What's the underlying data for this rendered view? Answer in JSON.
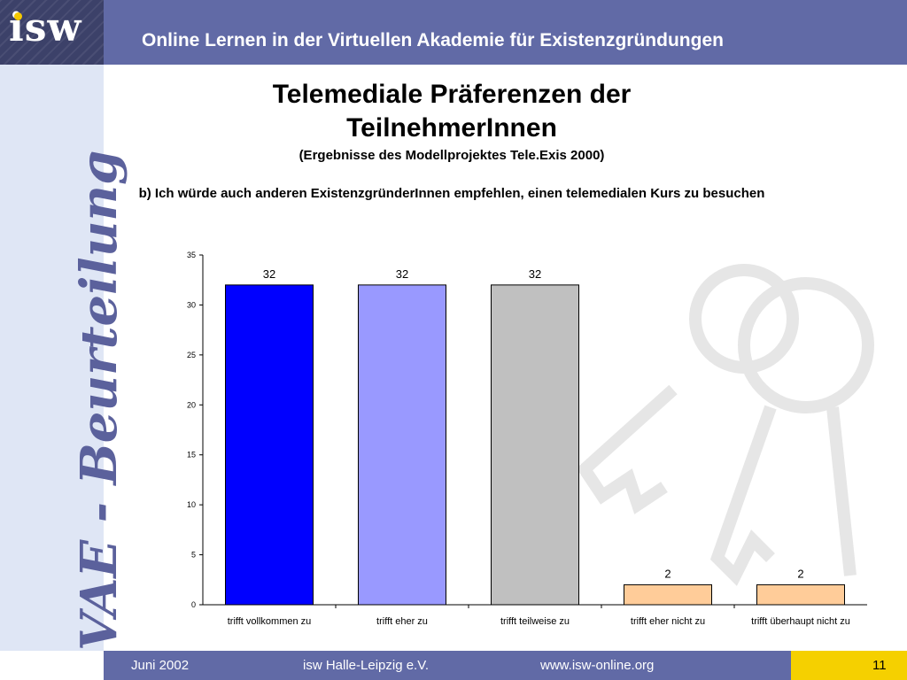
{
  "header": {
    "logo": "isw",
    "title": "Online Lernen in der Virtuellen Akademie für Existenzgründungen"
  },
  "side_label": "VAE - Beurteilung",
  "slide": {
    "title": "Telemediale Präferenzen der TeilnehmerInnen",
    "subtitle": "(Ergebnisse des Modellprojektes Tele.Exis 2000)",
    "question": "b) Ich würde auch anderen ExistenzgründerInnen empfehlen, einen telemedialen Kurs zu besuchen"
  },
  "chart_data": {
    "type": "bar",
    "categories": [
      "trifft vollkommen zu",
      "trifft eher zu",
      "trifft teilweise zu",
      "trifft eher nicht zu",
      "trifft überhaupt nicht zu"
    ],
    "values": [
      32,
      32,
      32,
      2,
      2
    ],
    "bar_colors": [
      "#0000ff",
      "#9999ff",
      "#c0c0c0",
      "#ffcc99",
      "#ffcc99"
    ],
    "ylim": [
      0,
      35
    ],
    "yticks": [
      0,
      5,
      10,
      15,
      20,
      25,
      30,
      35
    ],
    "data_labels": true,
    "title": "",
    "xlabel": "",
    "ylabel": ""
  },
  "footer": {
    "date": "Juni 2002",
    "org": "isw Halle-Leipzig e.V.",
    "website": "www.isw-online.org",
    "page": "11"
  },
  "colors": {
    "header_bg": "#616aa6",
    "side_band": "#dfe6f5",
    "accent_yellow": "#f5d000"
  }
}
